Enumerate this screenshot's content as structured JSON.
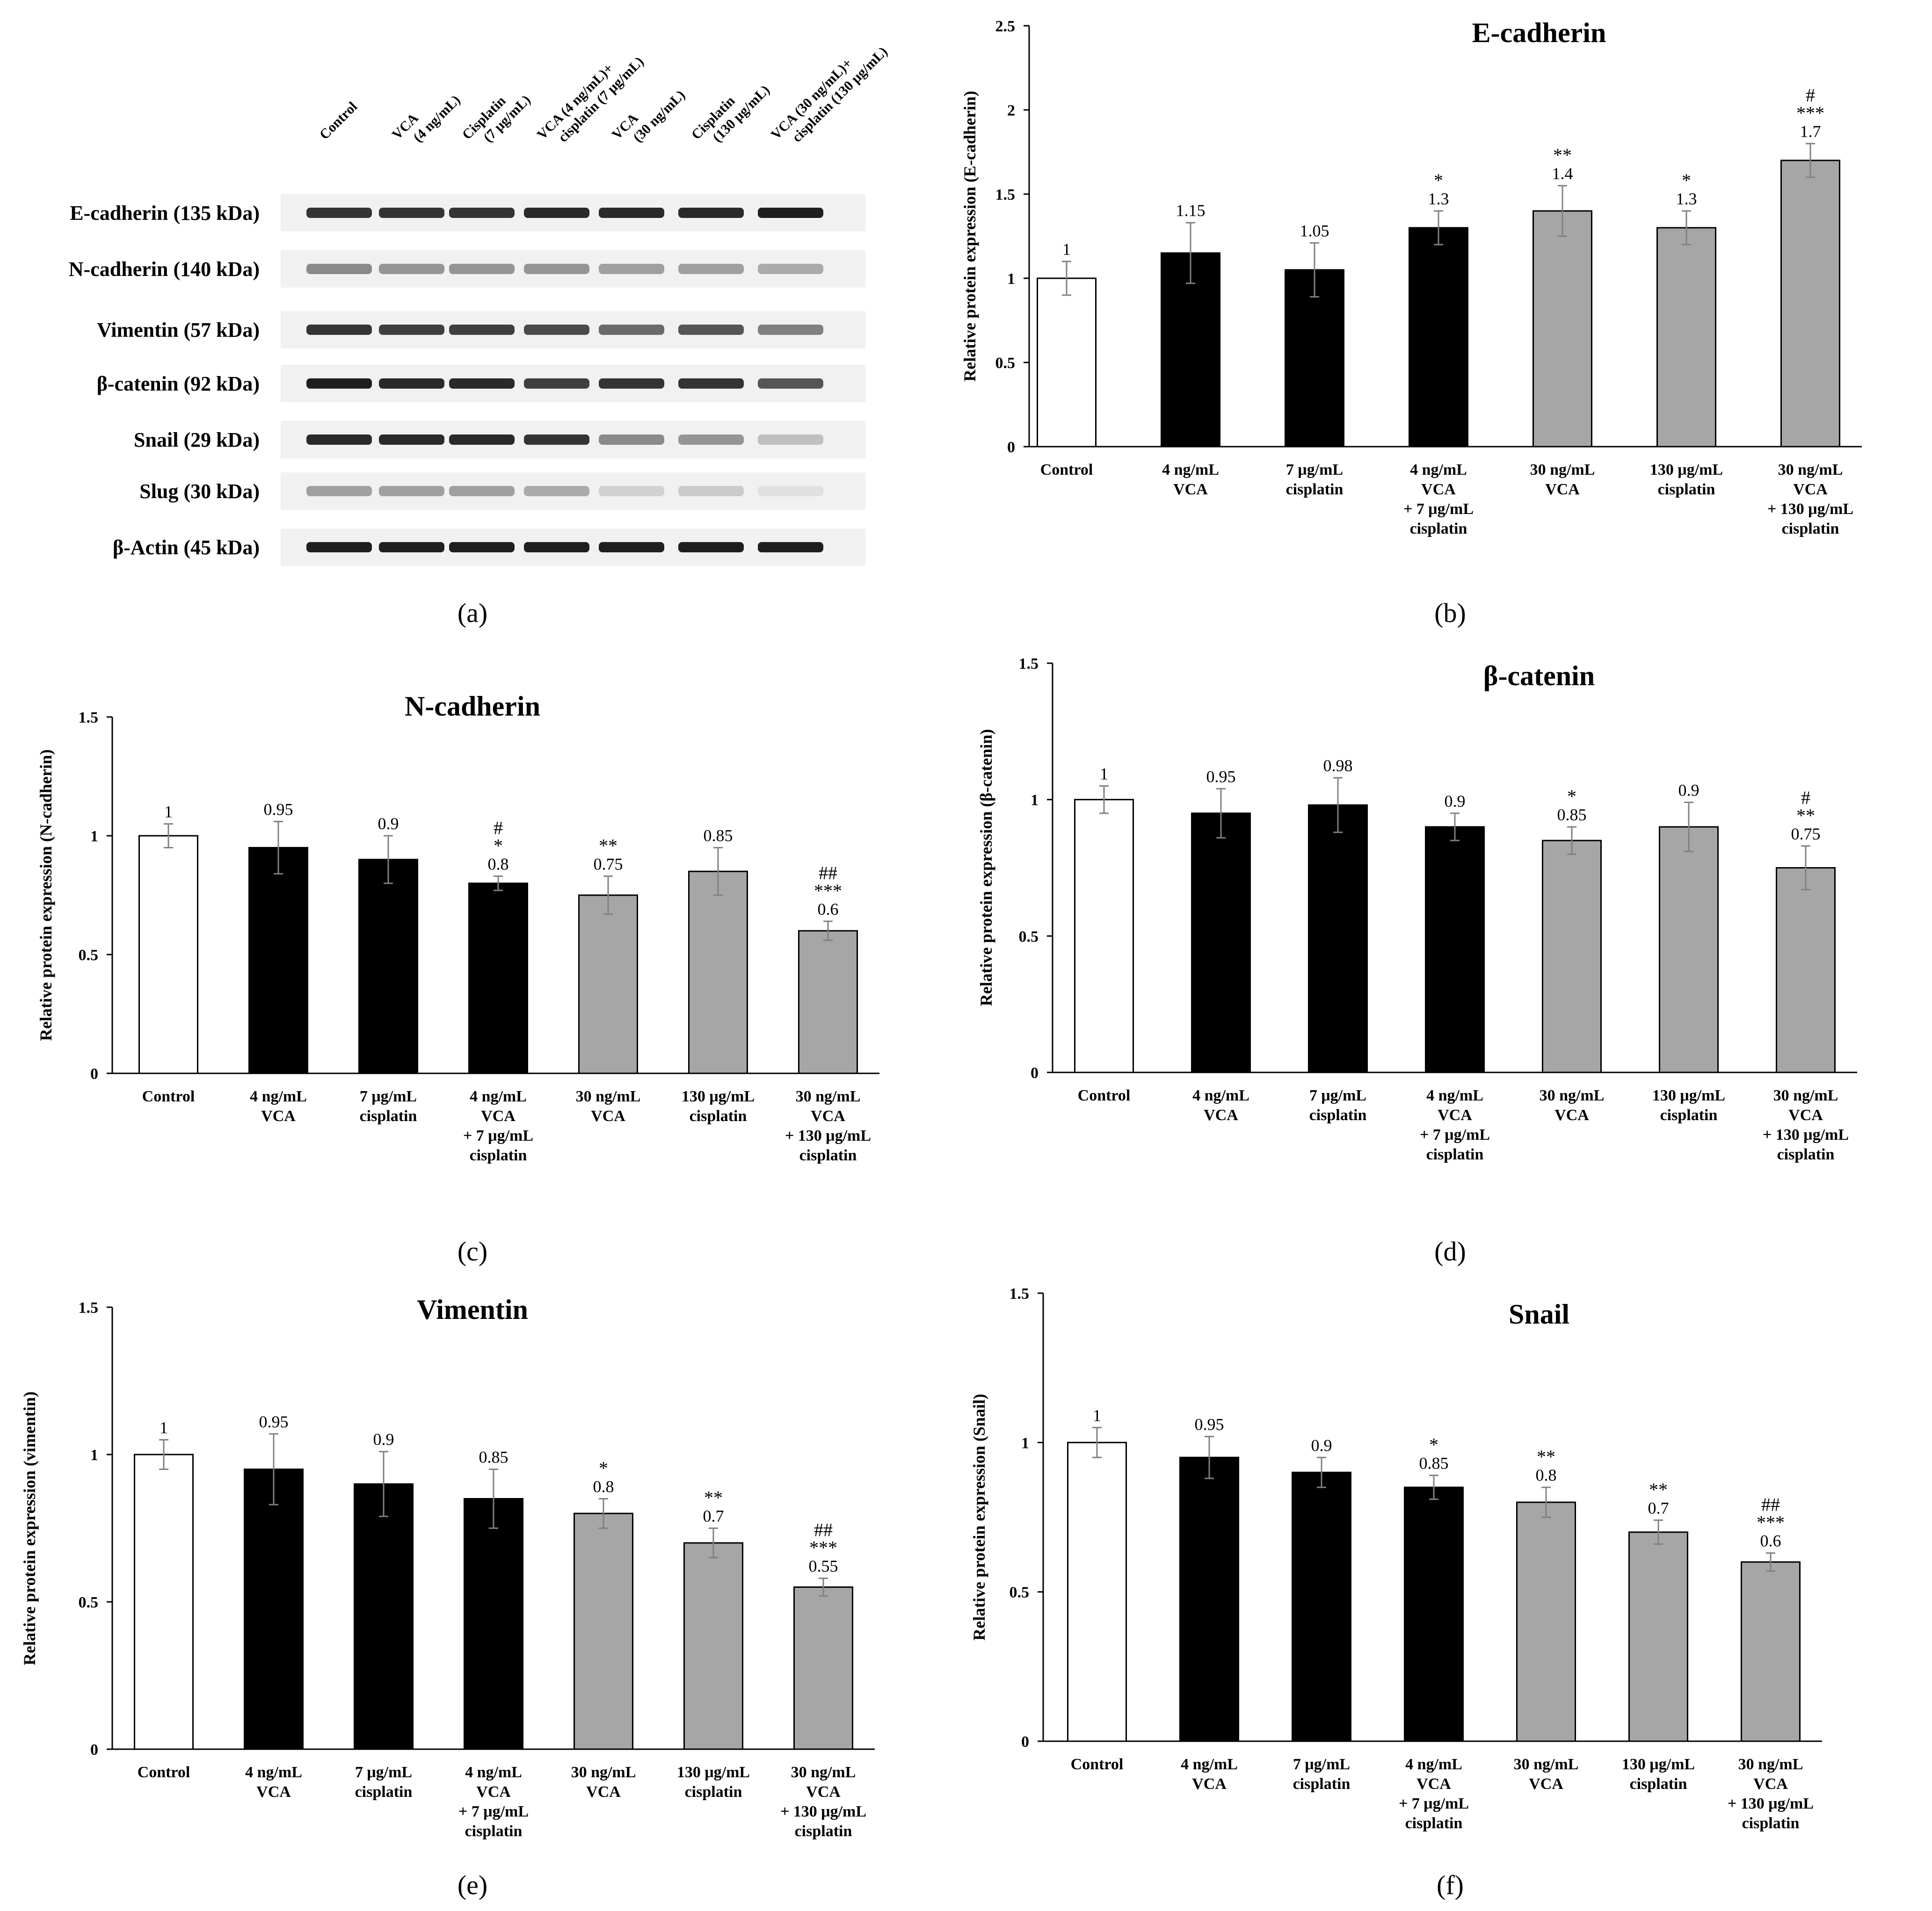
{
  "panel_labels": [
    "(a)",
    "(b)",
    "(c)",
    "(d)",
    "(e)",
    "(f)"
  ],
  "blot": {
    "lanes": [
      [
        "Control"
      ],
      [
        "VCA",
        "(4 ng/mL)"
      ],
      [
        "Cisplatin",
        "(7 μg/mL)"
      ],
      [
        "VCA (4 ng/mL)+",
        "cisplatin (7 μg/mL)"
      ],
      [
        "VCA",
        "(30 ng/mL)"
      ],
      [
        "Cisplatin",
        "(130 μg/mL)"
      ],
      [
        "VCA (30 ng/mL)+",
        "cisplatin (130 μg/mL)"
      ]
    ],
    "bands": [
      {
        "label": "E-cadherin (135 kDa)",
        "intensity": [
          0.85,
          0.85,
          0.85,
          0.9,
          0.9,
          0.9,
          0.95
        ]
      },
      {
        "label": "N-cadherin (140 kDa)",
        "intensity": [
          0.45,
          0.4,
          0.4,
          0.4,
          0.35,
          0.35,
          0.3
        ]
      },
      {
        "label": "Vimentin (57 kDa)",
        "intensity": [
          0.85,
          0.8,
          0.8,
          0.75,
          0.6,
          0.7,
          0.5
        ]
      },
      {
        "label": "β-catenin (92 kDa)",
        "intensity": [
          0.95,
          0.9,
          0.9,
          0.8,
          0.85,
          0.85,
          0.7
        ]
      },
      {
        "label": "Snail (29 kDa)",
        "intensity": [
          0.9,
          0.9,
          0.9,
          0.85,
          0.45,
          0.4,
          0.2
        ]
      },
      {
        "label": "Slug (30 kDa)",
        "intensity": [
          0.35,
          0.35,
          0.35,
          0.3,
          0.12,
          0.15,
          0.05
        ]
      },
      {
        "label": "β-Actin (45 kDa)",
        "intensity": [
          0.95,
          0.95,
          0.95,
          0.95,
          0.95,
          0.95,
          0.95
        ]
      }
    ]
  },
  "colors": {
    "control": "#ffffff",
    "low_dose": "#000000",
    "high_dose": "#a6a6a6",
    "error_bar": "#808080",
    "axis": "#000000"
  },
  "chart_data": [
    {
      "id": "b",
      "type": "bar",
      "title": "E-cadherin",
      "ylabel": "Relative protein expression (E-cadherin)",
      "xlabel": "",
      "ylim": [
        0,
        2.5
      ],
      "yticks": [
        "0",
        "0.5",
        "1",
        "1.5",
        "2",
        "2.5"
      ],
      "categories": [
        [
          "Control"
        ],
        [
          "4 ng/mL",
          "VCA"
        ],
        [
          "7 μg/mL",
          "cisplatin"
        ],
        [
          "4 ng/mL",
          "VCA",
          "+ 7 μg/mL",
          "cisplatin"
        ],
        [
          "30 ng/mL",
          "VCA"
        ],
        [
          "130 μg/mL",
          "cisplatin"
        ],
        [
          "30 ng/mL",
          "VCA",
          "+ 130 μg/mL",
          "cisplatin"
        ]
      ],
      "values": [
        1,
        1.15,
        1.05,
        1.3,
        1.4,
        1.3,
        1.7
      ],
      "value_labels": [
        "1",
        "1.15",
        "1.05",
        "1.3",
        "1.4",
        "1.3",
        "1.7"
      ],
      "errors": [
        0.1,
        0.18,
        0.16,
        0.1,
        0.15,
        0.1,
        0.1
      ],
      "significance": [
        [],
        [],
        [],
        [
          "*"
        ],
        [
          "**"
        ],
        [
          "*"
        ],
        [
          "#",
          "***"
        ]
      ],
      "bar_groups": [
        "control",
        "low_dose",
        "low_dose",
        "low_dose",
        "high_dose",
        "high_dose",
        "high_dose"
      ]
    },
    {
      "id": "c",
      "type": "bar",
      "title": "N-cadherin",
      "ylabel": "Relative protein expression (N-cadherin)",
      "xlabel": "",
      "ylim": [
        0,
        1.5
      ],
      "yticks": [
        "0",
        "0.5",
        "1",
        "1.5"
      ],
      "categories": [
        [
          "Control"
        ],
        [
          "4 ng/mL",
          "VCA"
        ],
        [
          "7 μg/mL",
          "cisplatin"
        ],
        [
          "4 ng/mL",
          "VCA",
          "+ 7 μg/mL",
          "cisplatin"
        ],
        [
          "30 ng/mL",
          "VCA"
        ],
        [
          "130 μg/mL",
          "cisplatin"
        ],
        [
          "30 ng/mL",
          "VCA",
          "+ 130 μg/mL",
          "cisplatin"
        ]
      ],
      "values": [
        1,
        0.95,
        0.9,
        0.8,
        0.75,
        0.85,
        0.6
      ],
      "value_labels": [
        "1",
        "0.95",
        "0.9",
        "0.8",
        "0.75",
        "0.85",
        "0.6"
      ],
      "errors": [
        0.05,
        0.11,
        0.1,
        0.03,
        0.08,
        0.1,
        0.04
      ],
      "significance": [
        [],
        [],
        [],
        [
          "#",
          "*"
        ],
        [
          "**"
        ],
        [],
        [
          "##",
          "***"
        ]
      ],
      "bar_groups": [
        "control",
        "low_dose",
        "low_dose",
        "low_dose",
        "high_dose",
        "high_dose",
        "high_dose"
      ]
    },
    {
      "id": "d",
      "type": "bar",
      "title": "β-catenin",
      "ylabel": "Relative protein expression (β-catenin)",
      "xlabel": "",
      "ylim": [
        0,
        1.5
      ],
      "yticks": [
        "0",
        "0.5",
        "1",
        "1.5"
      ],
      "categories": [
        [
          "Control"
        ],
        [
          "4 ng/mL",
          "VCA"
        ],
        [
          "7 μg/mL",
          "cisplatin"
        ],
        [
          "4 ng/mL",
          "VCA",
          "+ 7 μg/mL",
          "cisplatin"
        ],
        [
          "30 ng/mL",
          "VCA"
        ],
        [
          "130 μg/mL",
          "cisplatin"
        ],
        [
          "30 ng/mL",
          "VCA",
          "+ 130 μg/mL",
          "cisplatin"
        ]
      ],
      "values": [
        1,
        0.95,
        0.98,
        0.9,
        0.85,
        0.9,
        0.75
      ],
      "value_labels": [
        "1",
        "0.95",
        "0.98",
        "0.9",
        "0.85",
        "0.9",
        "0.75"
      ],
      "errors": [
        0.05,
        0.09,
        0.1,
        0.05,
        0.05,
        0.09,
        0.08
      ],
      "significance": [
        [],
        [],
        [],
        [],
        [
          "*"
        ],
        [],
        [
          "#",
          "**"
        ]
      ],
      "bar_groups": [
        "control",
        "low_dose",
        "low_dose",
        "low_dose",
        "high_dose",
        "high_dose",
        "high_dose"
      ]
    },
    {
      "id": "e",
      "type": "bar",
      "title": "Vimentin",
      "ylabel": "Relative protein expression (vimentin)",
      "xlabel": "",
      "ylim": [
        0,
        1.5
      ],
      "yticks": [
        "0",
        "0.5",
        "1",
        "1.5"
      ],
      "categories": [
        [
          "Control"
        ],
        [
          "4 ng/mL",
          "VCA"
        ],
        [
          "7 μg/mL",
          "cisplatin"
        ],
        [
          "4 ng/mL",
          "VCA",
          "+ 7 μg/mL",
          "cisplatin"
        ],
        [
          "30 ng/mL",
          "VCA"
        ],
        [
          "130 μg/mL",
          "cisplatin"
        ],
        [
          "30 ng/mL",
          "VCA",
          "+ 130 μg/mL",
          "cisplatin"
        ]
      ],
      "values": [
        1,
        0.95,
        0.9,
        0.85,
        0.8,
        0.7,
        0.55
      ],
      "value_labels": [
        "1",
        "0.95",
        "0.9",
        "0.85",
        "0.8",
        "0.7",
        "0.55"
      ],
      "errors": [
        0.05,
        0.12,
        0.11,
        0.1,
        0.05,
        0.05,
        0.03
      ],
      "significance": [
        [],
        [],
        [],
        [],
        [
          "*"
        ],
        [
          "**"
        ],
        [
          "##",
          "***"
        ]
      ],
      "bar_groups": [
        "control",
        "low_dose",
        "low_dose",
        "low_dose",
        "high_dose",
        "high_dose",
        "high_dose"
      ]
    },
    {
      "id": "f",
      "type": "bar",
      "title": "Snail",
      "ylabel": "Relative protein expression (Snail)",
      "xlabel": "",
      "ylim": [
        0,
        1.5
      ],
      "yticks": [
        "0",
        "0.5",
        "1",
        "1.5"
      ],
      "categories": [
        [
          "Control"
        ],
        [
          "4 ng/mL",
          "VCA"
        ],
        [
          "7 μg/mL",
          "cisplatin"
        ],
        [
          "4 ng/mL",
          "VCA",
          "+ 7 μg/mL",
          "cisplatin"
        ],
        [
          "30 ng/mL",
          "VCA"
        ],
        [
          "130 μg/mL",
          "cisplatin"
        ],
        [
          "30 ng/mL",
          "VCA",
          "+ 130 μg/mL",
          "cisplatin"
        ]
      ],
      "values": [
        1,
        0.95,
        0.9,
        0.85,
        0.8,
        0.7,
        0.6
      ],
      "value_labels": [
        "1",
        "0.95",
        "0.9",
        "0.85",
        "0.8",
        "0.7",
        "0.6"
      ],
      "errors": [
        0.05,
        0.07,
        0.05,
        0.04,
        0.05,
        0.04,
        0.03
      ],
      "significance": [
        [],
        [],
        [],
        [
          "*"
        ],
        [
          "**"
        ],
        [
          "**"
        ],
        [
          "##",
          "***"
        ]
      ],
      "bar_groups": [
        "control",
        "low_dose",
        "low_dose",
        "low_dose",
        "high_dose",
        "high_dose",
        "high_dose"
      ]
    }
  ]
}
